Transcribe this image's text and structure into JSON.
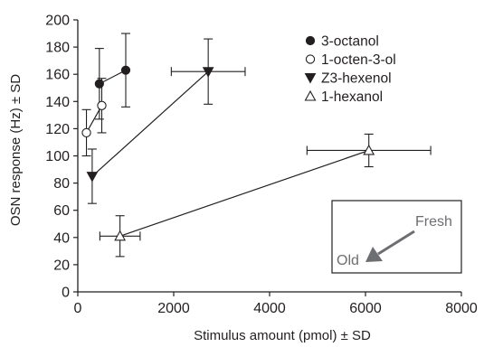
{
  "chart_data": {
    "type": "scatter",
    "xlabel": "Stimulus amount (pmol) ± SD",
    "ylabel": "OSN response (Hz) ± SD",
    "xlim": [
      0,
      8000
    ],
    "ylim": [
      0,
      200
    ],
    "xticks": [
      0,
      2000,
      4000,
      6000,
      8000
    ],
    "yticks": [
      0,
      20,
      40,
      60,
      80,
      100,
      120,
      140,
      160,
      180,
      200
    ],
    "grid": false,
    "legend_position": "top-right",
    "series": [
      {
        "name": "3-octanol",
        "marker": "filled-circle",
        "points": [
          {
            "x": 450,
            "y": 153,
            "xerr": 0,
            "yerr": 26
          },
          {
            "x": 1000,
            "y": 163,
            "xerr": 0,
            "yerr": 27
          }
        ]
      },
      {
        "name": "1-octen-3-ol",
        "marker": "open-circle",
        "points": [
          {
            "x": 180,
            "y": 117,
            "xerr": 0,
            "yerr": 17
          },
          {
            "x": 500,
            "y": 137,
            "xerr": 0,
            "yerr": 20
          }
        ]
      },
      {
        "name": "Z3-hexenol",
        "marker": "filled-triangle-down",
        "points": [
          {
            "x": 300,
            "y": 85,
            "xerr": 0,
            "yerr": 20
          },
          {
            "x": 2720,
            "y": 162,
            "xerr": 770,
            "yerr": 24
          }
        ]
      },
      {
        "name": "1-hexanol",
        "marker": "open-triangle-up",
        "points": [
          {
            "x": 880,
            "y": 41,
            "xerr": 420,
            "yerr": 15
          },
          {
            "x": 6070,
            "y": 104,
            "xerr": 1290,
            "yerr": 12
          }
        ]
      }
    ]
  },
  "annotation": {
    "fresh_label": "Fresh",
    "old_label": "Old"
  },
  "colors": {
    "ink": "#231f20",
    "annotation_gray": "#6d6e71"
  }
}
